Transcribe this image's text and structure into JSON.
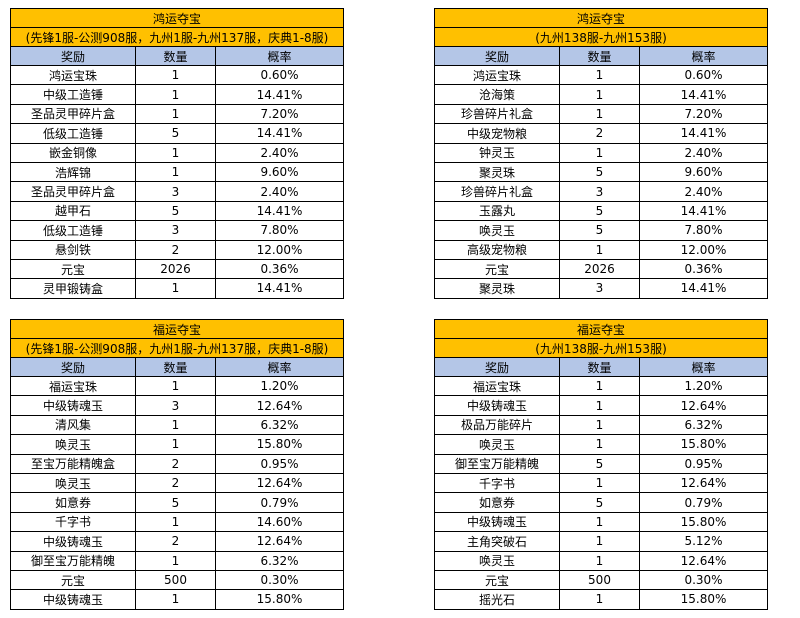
{
  "tables": [
    {
      "title": "鸿运夺宝",
      "subtitle": "(先锋1服-公测908服，九州1服-九州137服，庆典1-8服)",
      "headers": [
        "奖励",
        "数量",
        "概率"
      ],
      "rows": [
        [
          "鸿运宝珠",
          "1",
          "0.60%"
        ],
        [
          "中级工造锤",
          "1",
          "14.41%"
        ],
        [
          "圣品灵甲碎片盒",
          "1",
          "7.20%"
        ],
        [
          "低级工造锤",
          "5",
          "14.41%"
        ],
        [
          "嵌金铜像",
          "1",
          "2.40%"
        ],
        [
          "浩辉锦",
          "1",
          "9.60%"
        ],
        [
          "圣品灵甲碎片盒",
          "3",
          "2.40%"
        ],
        [
          "越甲石",
          "5",
          "14.41%"
        ],
        [
          "低级工造锤",
          "3",
          "7.80%"
        ],
        [
          "悬剑铁",
          "2",
          "12.00%"
        ],
        [
          "元宝",
          "2026",
          "0.36%"
        ],
        [
          "灵甲锻铸盒",
          "1",
          "14.41%"
        ]
      ]
    },
    {
      "title": "鸿运夺宝",
      "subtitle": "(九州138服-九州153服)",
      "headers": [
        "奖励",
        "数量",
        "概率"
      ],
      "rows": [
        [
          "鸿运宝珠",
          "1",
          "0.60%"
        ],
        [
          "沧海策",
          "1",
          "14.41%"
        ],
        [
          "珍兽碎片礼盒",
          "1",
          "7.20%"
        ],
        [
          "中级宠物粮",
          "2",
          "14.41%"
        ],
        [
          "钟灵玉",
          "1",
          "2.40%"
        ],
        [
          "聚灵珠",
          "5",
          "9.60%"
        ],
        [
          "珍兽碎片礼盒",
          "3",
          "2.40%"
        ],
        [
          "玉露丸",
          "5",
          "14.41%"
        ],
        [
          "唤灵玉",
          "5",
          "7.80%"
        ],
        [
          "高级宠物粮",
          "1",
          "12.00%"
        ],
        [
          "元宝",
          "2026",
          "0.36%"
        ],
        [
          "聚灵珠",
          "3",
          "14.41%"
        ]
      ]
    },
    {
      "title": "福运夺宝",
      "subtitle": "(先锋1服-公测908服，九州1服-九州137服，庆典1-8服)",
      "headers": [
        "奖励",
        "数量",
        "概率"
      ],
      "rows": [
        [
          "福运宝珠",
          "1",
          "1.20%"
        ],
        [
          "中级铸魂玉",
          "3",
          "12.64%"
        ],
        [
          "清风集",
          "1",
          "6.32%"
        ],
        [
          "唤灵玉",
          "1",
          "15.80%"
        ],
        [
          "至宝万能精魄盒",
          "2",
          "0.95%"
        ],
        [
          "唤灵玉",
          "2",
          "12.64%"
        ],
        [
          "如意券",
          "5",
          "0.79%"
        ],
        [
          "千字书",
          "1",
          "14.60%"
        ],
        [
          "中级铸魂玉",
          "2",
          "12.64%"
        ],
        [
          "御至宝万能精魄",
          "1",
          "6.32%"
        ],
        [
          "元宝",
          "500",
          "0.30%"
        ],
        [
          "中级铸魂玉",
          "1",
          "15.80%"
        ]
      ]
    },
    {
      "title": "福运夺宝",
      "subtitle": "(九州138服-九州153服)",
      "headers": [
        "奖励",
        "数量",
        "概率"
      ],
      "rows": [
        [
          "福运宝珠",
          "1",
          "1.20%"
        ],
        [
          "中级铸魂玉",
          "1",
          "12.64%"
        ],
        [
          "极品万能碎片",
          "1",
          "6.32%"
        ],
        [
          "唤灵玉",
          "1",
          "15.80%"
        ],
        [
          "御至宝万能精魄",
          "5",
          "0.95%"
        ],
        [
          "千字书",
          "1",
          "12.64%"
        ],
        [
          "如意券",
          "5",
          "0.79%"
        ],
        [
          "中级铸魂玉",
          "1",
          "15.80%"
        ],
        [
          "主角突破石",
          "1",
          "5.12%"
        ],
        [
          "唤灵玉",
          "1",
          "12.64%"
        ],
        [
          "元宝",
          "500",
          "0.30%"
        ],
        [
          "摇光石",
          "1",
          "15.80%"
        ]
      ]
    }
  ]
}
